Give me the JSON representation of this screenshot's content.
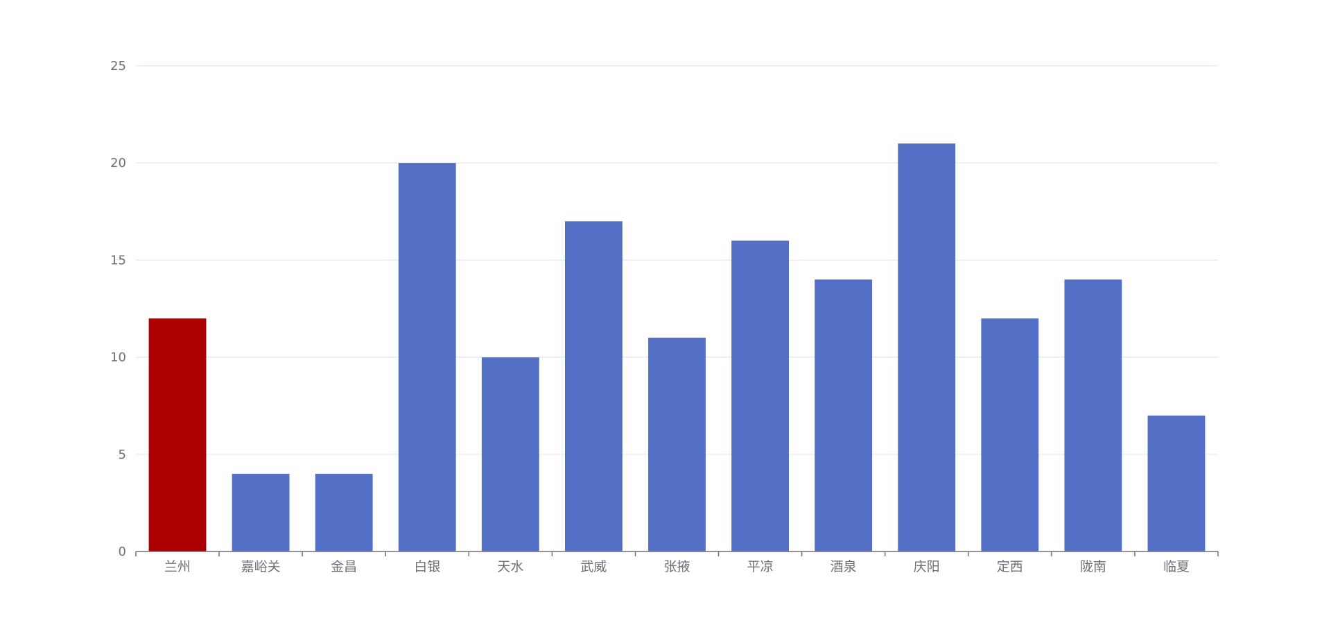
{
  "chart_data": {
    "type": "bar",
    "categories": [
      "兰州",
      "嘉峪关",
      "金昌",
      "白银",
      "天水",
      "武威",
      "张掖",
      "平凉",
      "酒泉",
      "庆阳",
      "定西",
      "陇南",
      "临夏"
    ],
    "values": [
      12,
      4,
      4,
      20,
      10,
      17,
      11,
      16,
      14,
      21,
      12,
      14,
      7
    ],
    "highlight_index": 0,
    "ylim": [
      0,
      25
    ],
    "yticks": [
      0,
      5,
      10,
      15,
      20,
      25
    ],
    "title": "",
    "xlabel": "",
    "ylabel": "",
    "grid": true,
    "legend": "none"
  },
  "colors": {
    "bar": "#5470c6",
    "highlight": "#aa0000",
    "grid": "#e0e6f1",
    "axis": "#6e7079",
    "label": "#6e7079"
  }
}
